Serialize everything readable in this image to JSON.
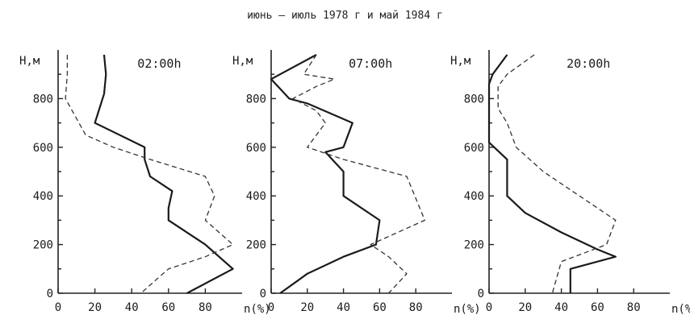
{
  "figure": {
    "title": "июнь – июль 1978 г и май 1984 г"
  },
  "chart_data": [
    {
      "type": "line",
      "title": "02:00h",
      "xlabel": "n(%)",
      "ylabel": "H,м",
      "xlim": [
        0,
        100
      ],
      "ylim": [
        0,
        1000
      ],
      "x_ticks": [
        0,
        20,
        40,
        60,
        80
      ],
      "y_ticks": [
        0,
        200,
        400,
        600,
        800
      ],
      "series": [
        {
          "style": "solid",
          "points": [
            [
              25,
              980
            ],
            [
              26,
              900
            ],
            [
              25,
              820
            ],
            [
              20,
              700
            ],
            [
              47,
              600
            ],
            [
              47,
              550
            ],
            [
              50,
              480
            ],
            [
              62,
              420
            ],
            [
              60,
              350
            ],
            [
              60,
              300
            ],
            [
              80,
              200
            ],
            [
              95,
              100
            ],
            [
              70,
              0
            ]
          ]
        },
        {
          "style": "dashed",
          "points": [
            [
              5,
              980
            ],
            [
              5,
              900
            ],
            [
              4,
              800
            ],
            [
              15,
              650
            ],
            [
              30,
              600
            ],
            [
              50,
              550
            ],
            [
              80,
              480
            ],
            [
              85,
              400
            ],
            [
              80,
              300
            ],
            [
              95,
              200
            ],
            [
              80,
              150
            ],
            [
              60,
              100
            ],
            [
              45,
              0
            ]
          ]
        }
      ]
    },
    {
      "type": "line",
      "title": "07:00h",
      "xlabel": "n(%)",
      "ylabel": "H,м",
      "xlim": [
        0,
        100
      ],
      "ylim": [
        0,
        1000
      ],
      "x_ticks": [
        0,
        20,
        40,
        60,
        80
      ],
      "y_ticks": [
        0,
        200,
        400,
        600,
        800
      ],
      "series": [
        {
          "style": "solid",
          "points": [
            [
              25,
              980
            ],
            [
              0,
              880
            ],
            [
              10,
              800
            ],
            [
              20,
              780
            ],
            [
              45,
              700
            ],
            [
              40,
              600
            ],
            [
              30,
              580
            ],
            [
              40,
              500
            ],
            [
              40,
              400
            ],
            [
              60,
              300
            ],
            [
              58,
              200
            ],
            [
              40,
              150
            ],
            [
              20,
              80
            ],
            [
              5,
              0
            ]
          ]
        },
        {
          "style": "dashed",
          "points": [
            [
              25,
              980
            ],
            [
              18,
              900
            ],
            [
              35,
              880
            ],
            [
              25,
              850
            ],
            [
              12,
              800
            ],
            [
              25,
              750
            ],
            [
              30,
              700
            ],
            [
              25,
              650
            ],
            [
              20,
              600
            ],
            [
              40,
              550
            ],
            [
              75,
              480
            ],
            [
              85,
              300
            ],
            [
              55,
              200
            ],
            [
              65,
              150
            ],
            [
              75,
              80
            ],
            [
              65,
              0
            ]
          ]
        }
      ]
    },
    {
      "type": "line",
      "title": "20:00h",
      "xlabel": "n(%)",
      "ylabel": "H,м",
      "xlim": [
        0,
        100
      ],
      "ylim": [
        0,
        1000
      ],
      "x_ticks": [
        0,
        20,
        40,
        60,
        80
      ],
      "y_ticks": [
        0,
        200,
        400,
        600,
        800
      ],
      "series": [
        {
          "style": "solid",
          "points": [
            [
              10,
              980
            ],
            [
              2,
              900
            ],
            [
              0,
              860
            ],
            [
              0,
              700
            ],
            [
              0,
              620
            ],
            [
              10,
              550
            ],
            [
              10,
              480
            ],
            [
              10,
              400
            ],
            [
              20,
              330
            ],
            [
              40,
              250
            ],
            [
              60,
              180
            ],
            [
              70,
              150
            ],
            [
              45,
              100
            ],
            [
              45,
              0
            ]
          ]
        },
        {
          "style": "dashed",
          "points": [
            [
              25,
              980
            ],
            [
              10,
              900
            ],
            [
              5,
              850
            ],
            [
              5,
              760
            ],
            [
              10,
              700
            ],
            [
              15,
              600
            ],
            [
              30,
              500
            ],
            [
              50,
              400
            ],
            [
              70,
              300
            ],
            [
              65,
              200
            ],
            [
              40,
              130
            ],
            [
              35,
              0
            ]
          ]
        }
      ]
    }
  ]
}
